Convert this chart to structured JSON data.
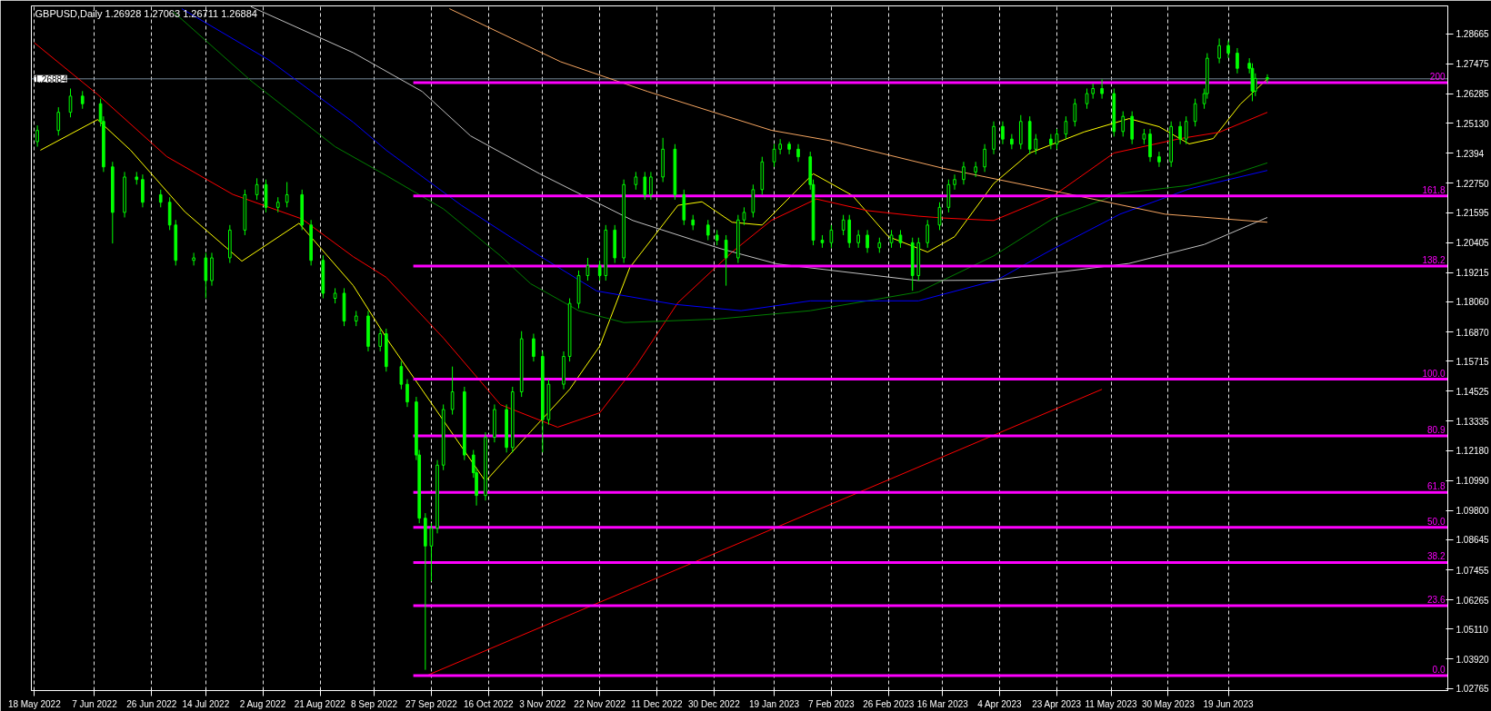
{
  "chart_data": {
    "type": "candlestick",
    "title": "GBPUSD,Daily  1.26928 1.27063 1.26711 1.26884",
    "color": "#00ff00",
    "x": [
      "2022-05-19",
      "2022-05-26",
      "2022-05-30",
      "2022-06-03",
      "2022-06-09",
      "2022-06-10",
      "2022-06-13",
      "2022-06-17",
      "2022-06-21",
      "2022-06-23",
      "2022-06-29",
      "2022-07-02",
      "2022-07-04",
      "2022-07-10",
      "2022-07-14",
      "2022-07-16",
      "2022-07-22",
      "2022-07-27",
      "2022-07-31",
      "2022-08-03",
      "2022-08-07",
      "2022-08-10",
      "2022-08-15",
      "2022-08-18",
      "2022-08-22",
      "2022-08-26",
      "2022-08-29",
      "2022-09-02",
      "2022-09-06",
      "2022-09-10",
      "2022-09-12",
      "2022-09-17",
      "2022-09-19",
      "2022-09-22",
      "2022-09-23",
      "2022-09-25",
      "2022-09-27",
      "2022-09-29",
      "2022-10-01",
      "2022-10-04",
      "2022-10-08",
      "2022-10-11",
      "2022-10-12",
      "2022-10-15",
      "2022-10-18",
      "2022-10-22",
      "2022-10-24",
      "2022-10-27",
      "2022-10-31",
      "2022-11-03",
      "2022-11-05",
      "2022-11-10",
      "2022-11-12",
      "2022-11-15",
      "2022-11-18",
      "2022-11-22",
      "2022-11-24",
      "2022-11-27",
      "2022-11-30",
      "2022-12-04",
      "2022-12-07",
      "2022-12-09",
      "2022-12-13",
      "2022-12-17",
      "2022-12-20",
      "2022-12-23",
      "2022-12-28",
      "2022-12-31",
      "2023-01-03",
      "2023-01-07",
      "2023-01-09",
      "2023-01-12",
      "2023-01-15",
      "2023-01-19",
      "2023-01-21",
      "2023-01-24",
      "2023-01-27",
      "2023-01-31",
      "2023-02-01",
      "2023-02-04",
      "2023-02-07",
      "2023-02-11",
      "2023-02-13",
      "2023-02-16",
      "2023-02-19",
      "2023-02-23",
      "2023-02-27",
      "2023-03-02",
      "2023-03-06",
      "2023-03-08",
      "2023-03-11",
      "2023-03-15",
      "2023-03-18",
      "2023-03-20",
      "2023-03-23",
      "2023-03-27",
      "2023-03-30",
      "2023-04-02",
      "2023-04-05",
      "2023-04-08",
      "2023-04-11",
      "2023-04-14",
      "2023-04-16",
      "2023-04-21",
      "2023-04-23",
      "2023-04-26",
      "2023-04-29",
      "2023-05-03",
      "2023-05-05",
      "2023-05-08",
      "2023-05-12",
      "2023-05-15",
      "2023-05-18",
      "2023-05-22",
      "2023-05-24",
      "2023-05-27",
      "2023-05-31",
      "2023-06-03",
      "2023-06-05",
      "2023-06-08",
      "2023-06-11",
      "2023-06-12",
      "2023-06-16",
      "2023-06-19",
      "2023-06-22",
      "2023-06-26",
      "2023-06-27",
      "2023-06-28",
      "2023-07-02"
    ],
    "ohlc": [
      [
        1.244,
        1.2504,
        1.242,
        1.2484
      ],
      [
        1.2484,
        1.2576,
        1.2464,
        1.2556
      ],
      [
        1.2556,
        1.265,
        1.2536,
        1.262
      ],
      [
        1.262,
        1.264,
        1.257,
        1.259
      ],
      [
        1.259,
        1.261,
        1.25,
        1.252
      ],
      [
        1.252,
        1.254,
        1.232,
        1.234
      ],
      [
        1.234,
        1.236,
        1.2037,
        1.216
      ],
      [
        1.216,
        1.232,
        1.214,
        1.23
      ],
      [
        1.23,
        1.232,
        1.227,
        1.229
      ],
      [
        1.229,
        1.231,
        1.218,
        1.22
      ],
      [
        1.223,
        1.225,
        1.218,
        1.22
      ],
      [
        1.22,
        1.222,
        1.209,
        1.211
      ],
      [
        1.211,
        1.213,
        1.195,
        1.197
      ],
      [
        1.197,
        1.2,
        1.195,
        1.198
      ],
      [
        1.198,
        1.2,
        1.182,
        1.189
      ],
      [
        1.189,
        1.2,
        1.187,
        1.198
      ],
      [
        1.198,
        1.211,
        1.196,
        1.209
      ],
      [
        1.209,
        1.225,
        1.207,
        1.223
      ],
      [
        1.223,
        1.2295,
        1.221,
        1.227
      ],
      [
        1.227,
        1.229,
        1.216,
        1.218
      ],
      [
        1.218,
        1.222,
        1.216,
        1.22
      ],
      [
        1.22,
        1.228,
        1.218,
        1.223
      ],
      [
        1.223,
        1.225,
        1.209,
        1.211
      ],
      [
        1.211,
        1.213,
        1.195,
        1.197
      ],
      [
        1.197,
        1.199,
        1.182,
        1.184
      ],
      [
        1.182,
        1.186,
        1.18,
        1.184
      ],
      [
        1.184,
        1.186,
        1.171,
        1.173
      ],
      [
        1.173,
        1.177,
        1.171,
        1.175
      ],
      [
        1.175,
        1.177,
        1.161,
        1.163
      ],
      [
        1.163,
        1.17,
        1.161,
        1.168
      ],
      [
        1.168,
        1.17,
        1.153,
        1.155
      ],
      [
        1.155,
        1.157,
        1.146,
        1.148
      ],
      [
        1.148,
        1.15,
        1.139,
        1.141
      ],
      [
        1.141,
        1.143,
        1.118,
        1.12
      ],
      [
        1.12,
        1.122,
        1.093,
        1.095
      ],
      [
        1.095,
        1.097,
        1.035,
        1.084
      ],
      [
        1.084,
        1.093,
        1.07,
        1.091
      ],
      [
        1.091,
        1.118,
        1.089,
        1.116
      ],
      [
        1.116,
        1.14,
        1.114,
        1.138
      ],
      [
        1.138,
        1.155,
        1.136,
        1.145
      ],
      [
        1.145,
        1.147,
        1.118,
        1.12
      ],
      [
        1.12,
        1.122,
        1.111,
        1.113
      ],
      [
        1.113,
        1.115,
        1.1,
        1.104
      ],
      [
        1.104,
        1.129,
        1.102,
        1.127
      ],
      [
        1.127,
        1.14,
        1.125,
        1.138
      ],
      [
        1.138,
        1.14,
        1.121,
        1.123
      ],
      [
        1.123,
        1.147,
        1.121,
        1.145
      ],
      [
        1.145,
        1.169,
        1.143,
        1.166
      ],
      [
        1.166,
        1.168,
        1.157,
        1.159
      ],
      [
        1.159,
        1.161,
        1.121,
        1.134
      ],
      [
        1.134,
        1.15,
        1.132,
        1.148
      ],
      [
        1.148,
        1.161,
        1.146,
        1.159
      ],
      [
        1.159,
        1.182,
        1.157,
        1.18
      ],
      [
        1.18,
        1.193,
        1.178,
        1.191
      ],
      [
        1.191,
        1.198,
        1.189,
        1.195
      ],
      [
        1.195,
        1.197,
        1.189,
        1.191
      ],
      [
        1.191,
        1.211,
        1.189,
        1.209
      ],
      [
        1.209,
        1.211,
        1.196,
        1.198
      ],
      [
        1.198,
        1.229,
        1.196,
        1.227
      ],
      [
        1.227,
        1.232,
        1.225,
        1.23
      ],
      [
        1.23,
        1.232,
        1.221,
        1.223
      ],
      [
        1.223,
        1.232,
        1.221,
        1.23
      ],
      [
        1.23,
        1.2455,
        1.228,
        1.241
      ],
      [
        1.241,
        1.243,
        1.221,
        1.223
      ],
      [
        1.223,
        1.225,
        1.211,
        1.213
      ],
      [
        1.213,
        1.215,
        1.209,
        1.211
      ],
      [
        1.211,
        1.213,
        1.205,
        1.207
      ],
      [
        1.207,
        1.209,
        1.203,
        1.205
      ],
      [
        1.205,
        1.207,
        1.187,
        1.198
      ],
      [
        1.198,
        1.215,
        1.196,
        1.213
      ],
      [
        1.213,
        1.218,
        1.211,
        1.216
      ],
      [
        1.216,
        1.227,
        1.214,
        1.225
      ],
      [
        1.225,
        1.238,
        1.223,
        1.236
      ],
      [
        1.236,
        1.243,
        1.234,
        1.241
      ],
      [
        1.241,
        1.245,
        1.239,
        1.243
      ],
      [
        1.243,
        1.244,
        1.239,
        1.241
      ],
      [
        1.241,
        1.243,
        1.236,
        1.238
      ],
      [
        1.238,
        1.24,
        1.225,
        1.227
      ],
      [
        1.227,
        1.229,
        1.203,
        1.205
      ],
      [
        1.205,
        1.207,
        1.202,
        1.204
      ],
      [
        1.204,
        1.211,
        1.202,
        1.209
      ],
      [
        1.209,
        1.215,
        1.207,
        1.213
      ],
      [
        1.213,
        1.215,
        1.202,
        1.204
      ],
      [
        1.204,
        1.209,
        1.202,
        1.207
      ],
      [
        1.207,
        1.209,
        1.2,
        1.202
      ],
      [
        1.202,
        1.206,
        1.2,
        1.204
      ],
      [
        1.204,
        1.209,
        1.202,
        1.207
      ],
      [
        1.207,
        1.209,
        1.202,
        1.204
      ],
      [
        1.204,
        1.206,
        1.185,
        1.191
      ],
      [
        1.191,
        1.206,
        1.189,
        1.204
      ],
      [
        1.204,
        1.213,
        1.202,
        1.211
      ],
      [
        1.211,
        1.22,
        1.209,
        1.218
      ],
      [
        1.218,
        1.229,
        1.216,
        1.227
      ],
      [
        1.227,
        1.231,
        1.225,
        1.229
      ],
      [
        1.229,
        1.236,
        1.227,
        1.234
      ],
      [
        1.232,
        1.236,
        1.23,
        1.234
      ],
      [
        1.234,
        1.243,
        1.232,
        1.241
      ],
      [
        1.241,
        1.252,
        1.239,
        1.25
      ],
      [
        1.25,
        1.252,
        1.243,
        1.245
      ],
      [
        1.245,
        1.247,
        1.241,
        1.243
      ],
      [
        1.243,
        1.2545,
        1.241,
        1.252
      ],
      [
        1.252,
        1.254,
        1.239,
        1.241
      ],
      [
        1.241,
        1.247,
        1.239,
        1.245
      ],
      [
        1.245,
        1.247,
        1.241,
        1.243
      ],
      [
        1.243,
        1.249,
        1.241,
        1.247
      ],
      [
        1.247,
        1.254,
        1.245,
        1.252
      ],
      [
        1.252,
        1.261,
        1.25,
        1.259
      ],
      [
        1.259,
        1.265,
        1.257,
        1.263
      ],
      [
        1.263,
        1.267,
        1.261,
        1.265
      ],
      [
        1.265,
        1.2686,
        1.261,
        1.263
      ],
      [
        1.263,
        1.265,
        1.246,
        1.248
      ],
      [
        1.248,
        1.256,
        1.246,
        1.254
      ],
      [
        1.254,
        1.256,
        1.243,
        1.245
      ],
      [
        1.245,
        1.249,
        1.243,
        1.247
      ],
      [
        1.247,
        1.249,
        1.236,
        1.238
      ],
      [
        1.238,
        1.24,
        1.234,
        1.236
      ],
      [
        1.236,
        1.252,
        1.234,
        1.25
      ],
      [
        1.25,
        1.252,
        1.243,
        1.245
      ],
      [
        1.245,
        1.254,
        1.243,
        1.252
      ],
      [
        1.252,
        1.261,
        1.25,
        1.259
      ],
      [
        1.259,
        1.265,
        1.257,
        1.263
      ],
      [
        1.263,
        1.279,
        1.261,
        1.277
      ],
      [
        1.277,
        1.2848,
        1.275,
        1.282
      ],
      [
        1.282,
        1.284,
        1.277,
        1.279
      ],
      [
        1.279,
        1.281,
        1.271,
        1.273
      ],
      [
        1.275,
        1.277,
        1.271,
        1.273
      ],
      [
        1.273,
        1.275,
        1.26,
        1.264
      ],
      [
        1.264,
        1.271,
        1.262,
        1.269
      ],
      [
        1.26928,
        1.27063,
        1.26711,
        1.26884
      ]
    ],
    "series": [
      {
        "type": "line",
        "color": "#ffff00",
        "x": [
          "2022-05-20",
          "2022-06-08",
          "2022-06-19",
          "2022-07-07",
          "2022-07-26",
          "2022-08-14",
          "2022-09-01",
          "2022-09-13",
          "2022-10-15",
          "2022-10-30",
          "2022-11-12",
          "2022-11-22",
          "2022-12-02",
          "2022-12-18",
          "2022-12-26",
          "2023-01-05",
          "2023-01-15",
          "2023-02-01",
          "2023-02-14",
          "2023-02-26",
          "2023-03-11",
          "2023-03-20",
          "2023-04-02",
          "2023-04-14",
          "2023-05-02",
          "2023-05-17",
          "2023-05-27",
          "2023-06-06",
          "2023-06-14",
          "2023-06-23",
          "2023-07-02"
        ],
        "values": [
          1.2406,
          1.2527,
          1.2406,
          1.2163,
          1.1967,
          1.2117,
          1.1871,
          1.1646,
          1.1096,
          1.1292,
          1.146,
          1.1631,
          1.1942,
          1.2188,
          1.2202,
          1.2121,
          1.211,
          1.2313,
          1.2227,
          1.2064,
          1.2003,
          1.2064,
          1.2274,
          1.2395,
          1.2478,
          1.2531,
          1.2499,
          1.2431,
          1.2452,
          1.2588,
          1.2688
        ]
      },
      {
        "type": "line",
        "color": "#ff0000",
        "x": [
          "2022-05-18",
          "2022-06-08",
          "2022-07-01",
          "2022-07-23",
          "2022-08-15",
          "2022-09-01",
          "2022-09-12",
          "2022-10-01",
          "2022-10-20",
          "2022-11-08",
          "2022-11-22",
          "2022-12-04",
          "2022-12-18",
          "2023-01-05",
          "2023-01-18",
          "2023-02-02",
          "2023-02-19",
          "2023-03-08",
          "2023-03-16",
          "2023-04-02",
          "2023-04-22",
          "2023-05-12",
          "2023-06-03",
          "2023-06-16",
          "2023-07-02"
        ],
        "values": [
          1.2831,
          1.2627,
          1.2381,
          1.2231,
          1.2134,
          1.1985,
          1.1903,
          1.1663,
          1.1399,
          1.131,
          1.1367,
          1.1552,
          1.1803,
          1.2003,
          1.2128,
          1.2213,
          1.2167,
          1.2145,
          1.2138,
          1.2128,
          1.2227,
          1.2395,
          1.2452,
          1.2477,
          1.2556
        ]
      },
      {
        "type": "line",
        "color": "#008000",
        "x": [
          "2022-07-03",
          "2022-07-29",
          "2022-08-26",
          "2022-09-12",
          "2022-10-01",
          "2022-10-20",
          "2022-10-30",
          "2022-11-15",
          "2022-11-30",
          "2022-12-31",
          "2023-01-31",
          "2023-03-08",
          "2023-04-02",
          "2023-04-22",
          "2023-05-14",
          "2023-06-06",
          "2023-06-21",
          "2023-07-02"
        ],
        "values": [
          1.2956,
          1.2681,
          1.242,
          1.2306,
          1.2174,
          1.1988,
          1.1878,
          1.1771,
          1.1724,
          1.1738,
          1.1771,
          1.1845,
          1.1988,
          1.2138,
          1.2235,
          1.2267,
          1.2313,
          1.2356
        ]
      },
      {
        "type": "line",
        "color": "#0000ff",
        "x": [
          "2022-07-06",
          "2022-08-04",
          "2022-09-01",
          "2022-09-12",
          "2022-10-07",
          "2022-11-02",
          "2022-11-21",
          "2022-12-17",
          "2023-01-08",
          "2023-01-31",
          "2023-03-08",
          "2023-04-03",
          "2023-04-22",
          "2023-05-14",
          "2023-06-06",
          "2023-07-02"
        ],
        "values": [
          1.2966,
          1.2763,
          1.2517,
          1.2406,
          1.2188,
          1.1988,
          1.1849,
          1.1796,
          1.1771,
          1.181,
          1.181,
          1.1892,
          1.2017,
          1.2153,
          1.2253,
          1.2326
        ]
      },
      {
        "type": "line",
        "color": "#c0c0c0",
        "x": [
          "2022-07-29",
          "2022-09-01",
          "2022-09-24",
          "2022-10-10",
          "2022-11-02",
          "2022-12-03",
          "2023-01-01",
          "2023-01-20",
          "2023-03-08",
          "2023-04-02",
          "2023-05-17",
          "2023-06-11",
          "2023-07-02"
        ],
        "values": [
          1.2974,
          1.2792,
          1.2638,
          1.2463,
          1.2313,
          1.2128,
          1.2017,
          1.1956,
          1.189,
          1.1892,
          1.1958,
          1.2033,
          1.214
        ]
      },
      {
        "type": "line",
        "color": "#f4a460",
        "x": [
          "2022-10-03",
          "2022-11-09",
          "2022-12-08",
          "2023-01-18",
          "2023-02-06",
          "2023-03-16",
          "2023-04-22",
          "2023-05-29",
          "2023-07-02"
        ],
        "values": [
          1.2966,
          1.2756,
          1.2638,
          1.2485,
          1.2445,
          1.2335,
          1.2245,
          1.2153,
          1.2121
        ]
      },
      {
        "type": "line",
        "color": "#ff0000",
        "x": [
          "2022-09-26",
          "2023-05-08"
        ],
        "values": [
          1.033,
          1.146
        ]
      },
      {
        "type": "line",
        "color": "#ff00ff",
        "name": "0.0",
        "x": [
          "2022-09-21",
          "2023-08-31"
        ],
        "values": [
          1.0327,
          1.0327
        ]
      },
      {
        "type": "line",
        "color": "#ff00ff",
        "name": "23.6",
        "x": [
          "2022-09-21",
          "2023-08-31"
        ],
        "values": [
          1.0604,
          1.0604
        ]
      },
      {
        "type": "line",
        "color": "#ff00ff",
        "name": "38.2",
        "x": [
          "2022-09-21",
          "2023-08-31"
        ],
        "values": [
          1.0775,
          1.0775
        ]
      },
      {
        "type": "line",
        "color": "#ff00ff",
        "name": "50.0",
        "x": [
          "2022-09-21",
          "2023-08-31"
        ],
        "values": [
          1.0914,
          1.0914
        ]
      },
      {
        "type": "line",
        "color": "#ff00ff",
        "name": "61.8",
        "x": [
          "2022-09-21",
          "2023-08-31"
        ],
        "values": [
          1.1052,
          1.1052
        ]
      },
      {
        "type": "line",
        "color": "#ff00ff",
        "name": "80.9",
        "x": [
          "2022-09-21",
          "2023-08-31"
        ],
        "values": [
          1.1276,
          1.1276
        ]
      },
      {
        "type": "line",
        "color": "#ff00ff",
        "name": "100.0",
        "x": [
          "2022-09-21",
          "2023-08-31"
        ],
        "values": [
          1.15,
          1.15
        ]
      },
      {
        "type": "line",
        "color": "#ff00ff",
        "name": "138.2",
        "x": [
          "2022-09-21",
          "2023-08-31"
        ],
        "values": [
          1.1948,
          1.1948
        ]
      },
      {
        "type": "line",
        "color": "#ff00ff",
        "name": "161.8",
        "x": [
          "2022-09-21",
          "2023-08-31"
        ],
        "values": [
          1.2225,
          1.2225
        ]
      },
      {
        "type": "line",
        "color": "#ff00ff",
        "name": "200",
        "x": [
          "2022-09-21",
          "2023-08-31"
        ],
        "values": [
          1.2673,
          1.2673
        ]
      }
    ],
    "ref_lines": [
      {
        "axis": "y",
        "value": 1.26884,
        "label": "1.26884",
        "color": "#778899"
      }
    ],
    "xlim": [
      "2022-05-17",
      "2023-08-31"
    ],
    "ylim": [
      1.0268,
      1.2977
    ],
    "xticks": [
      {
        "value": "2022-05-18",
        "label": "18 May 2022"
      },
      {
        "value": "2022-06-07",
        "label": "7 Jun 2022"
      },
      {
        "value": "2022-06-26",
        "label": "26 Jun 2022"
      },
      {
        "value": "2022-07-14",
        "label": "14 Jul 2022"
      },
      {
        "value": "2022-08-02",
        "label": "2 Aug 2022"
      },
      {
        "value": "2022-08-21",
        "label": "21 Aug 2022"
      },
      {
        "value": "2022-09-08",
        "label": "8 Sep 2022"
      },
      {
        "value": "2022-09-27",
        "label": "27 Sep 2022"
      },
      {
        "value": "2022-10-16",
        "label": "16 Oct 2022"
      },
      {
        "value": "2022-11-03",
        "label": "3 Nov 2022"
      },
      {
        "value": "2022-11-22",
        "label": "22 Nov 2022"
      },
      {
        "value": "2022-12-11",
        "label": "11 Dec 2022"
      },
      {
        "value": "2022-12-30",
        "label": "30 Dec 2022"
      },
      {
        "value": "2023-01-19",
        "label": "19 Jan 2023"
      },
      {
        "value": "2023-02-07",
        "label": "7 Feb 2023"
      },
      {
        "value": "2023-02-26",
        "label": "26 Feb 2023"
      },
      {
        "value": "2023-03-16",
        "label": "16 Mar 2023"
      },
      {
        "value": "2023-04-04",
        "label": "4 Apr 2023"
      },
      {
        "value": "2023-04-23",
        "label": "23 Apr 2023"
      },
      {
        "value": "2023-05-11",
        "label": "11 May 2023"
      },
      {
        "value": "2023-05-30",
        "label": "30 May 2023"
      },
      {
        "value": "2023-06-19",
        "label": "19 Jun 2023"
      }
    ],
    "yticks": [
      1.28665,
      1.27475,
      1.26285,
      {
        "value": 1.2513,
        "label": "1.25130"
      },
      1.2394,
      {
        "value": 1.2275,
        "label": "1.22750"
      },
      1.21595,
      1.20405,
      1.19215,
      {
        "value": 1.1806,
        "label": "1.18060"
      },
      {
        "value": 1.1687,
        "label": "1.16870"
      },
      1.15715,
      1.14525,
      1.13335,
      {
        "value": 1.1218,
        "label": "1.12180"
      },
      {
        "value": 1.1099,
        "label": "1.10990"
      },
      {
        "value": 1.098,
        "label": "1.09800"
      },
      1.08645,
      1.07455,
      1.06265,
      {
        "value": 1.0511,
        "label": "1.05110"
      },
      {
        "value": 1.0392,
        "label": "1.03920"
      },
      1.02765
    ],
    "grid": "x"
  }
}
